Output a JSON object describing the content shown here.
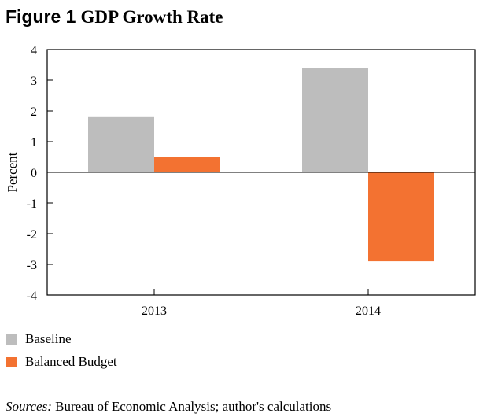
{
  "figure": {
    "label": "Figure 1",
    "title": "GDP Growth Rate"
  },
  "chart_data": {
    "type": "bar",
    "categories": [
      "2013",
      "2014"
    ],
    "series": [
      {
        "name": "Baseline",
        "color": "#bdbdbd",
        "values": [
          1.8,
          3.4
        ]
      },
      {
        "name": "Balanced Budget",
        "color": "#f37231",
        "values": [
          0.5,
          -2.9
        ]
      }
    ],
    "ylabel": "Percent",
    "ylim": [
      -4,
      4
    ],
    "yticks": [
      "4",
      "3",
      "2",
      "1",
      "0",
      "-1",
      "-2",
      "-3",
      "-4"
    ],
    "grid": false,
    "legend_position": "bottom-left"
  },
  "source": {
    "prefix": "Sources:",
    "text": " Bureau of Economic Analysis; author's calculations"
  }
}
